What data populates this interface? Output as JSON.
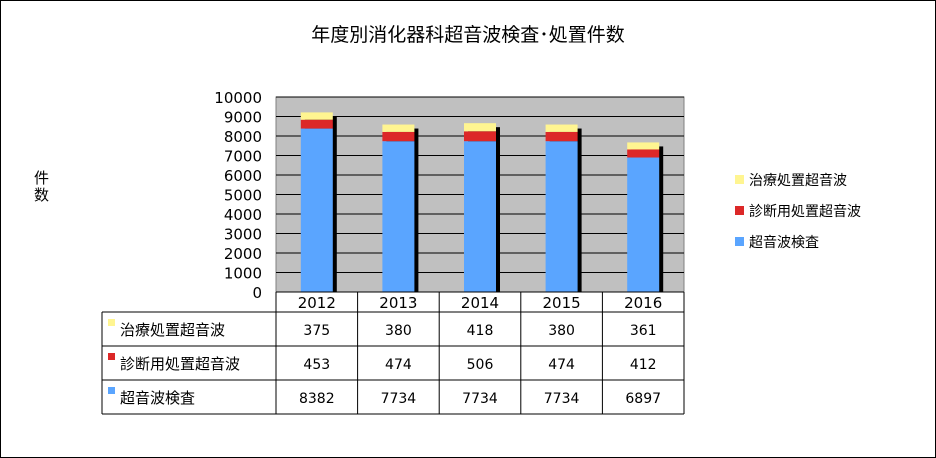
{
  "title": "年度別消化器科超音波検査･処置件数",
  "y_axis_label": "件数",
  "chart_data": {
    "type": "bar",
    "stacked": true,
    "title": "年度別消化器科超音波検査･処置件数",
    "ylabel": "件数",
    "xlabel": "",
    "ylim": [
      0,
      10000
    ],
    "yticks": [
      0,
      1000,
      2000,
      3000,
      4000,
      5000,
      6000,
      7000,
      8000,
      9000,
      10000
    ],
    "categories": [
      "2012",
      "2013",
      "2014",
      "2015",
      "2016"
    ],
    "series": [
      {
        "name": "超音波検査",
        "color": "#5aa5ff",
        "values": [
          8382,
          7734,
          7734,
          7734,
          6897
        ]
      },
      {
        "name": "診断用処置超音波",
        "color": "#dc2828",
        "values": [
          453,
          474,
          506,
          474,
          412
        ]
      },
      {
        "name": "治療処置超音波",
        "color": "#fff591",
        "values": [
          375,
          380,
          418,
          380,
          361
        ]
      }
    ],
    "legend": [
      "治療処置超音波",
      "診断用処置超音波",
      "超音波検査"
    ],
    "legend_position": "right",
    "grid": true,
    "data_table": true,
    "table_row_order": [
      "治療処置超音波",
      "診断用処置超音波",
      "超音波検査"
    ]
  }
}
